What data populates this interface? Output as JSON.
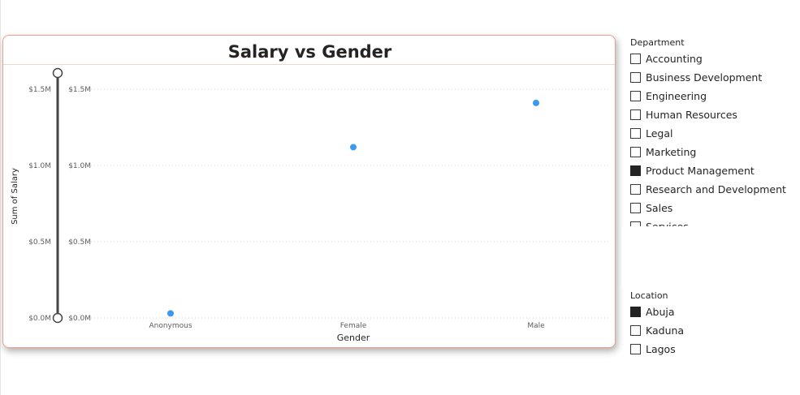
{
  "colors": {
    "point": "#3a9af2",
    "slider": "#444444",
    "card_border": "#e8a48f"
  },
  "chart_data": {
    "type": "scatter",
    "title": "Salary vs Gender",
    "xlabel": "Gender",
    "ylabel": "Sum of Salary",
    "categories": [
      "Anonymous",
      "Female",
      "Male"
    ],
    "series": [
      {
        "values": [
          30000,
          1120000,
          1410000
        ]
      }
    ],
    "ylim": [
      0,
      1500000
    ],
    "y_ticks": [
      {
        "value": 0,
        "label": "$0.0M"
      },
      {
        "value": 500000,
        "label": "$0.5M"
      },
      {
        "value": 1000000,
        "label": "$1.0M"
      },
      {
        "value": 1500000,
        "label": "$1.5M"
      }
    ],
    "grid": true,
    "y_range_slider": true
  },
  "slicers": {
    "department": {
      "title": "Department",
      "items": [
        {
          "label": "Accounting",
          "checked": false
        },
        {
          "label": "Business Development",
          "checked": false
        },
        {
          "label": "Engineering",
          "checked": false
        },
        {
          "label": "Human Resources",
          "checked": false
        },
        {
          "label": "Legal",
          "checked": false
        },
        {
          "label": "Marketing",
          "checked": false
        },
        {
          "label": "Product Management",
          "checked": true
        },
        {
          "label": "Research and Development",
          "checked": false
        },
        {
          "label": "Sales",
          "checked": false
        },
        {
          "label": "Services",
          "checked": false
        }
      ]
    },
    "location": {
      "title": "Location",
      "items": [
        {
          "label": "Abuja",
          "checked": true
        },
        {
          "label": "Kaduna",
          "checked": false
        },
        {
          "label": "Lagos",
          "checked": false
        }
      ]
    }
  }
}
